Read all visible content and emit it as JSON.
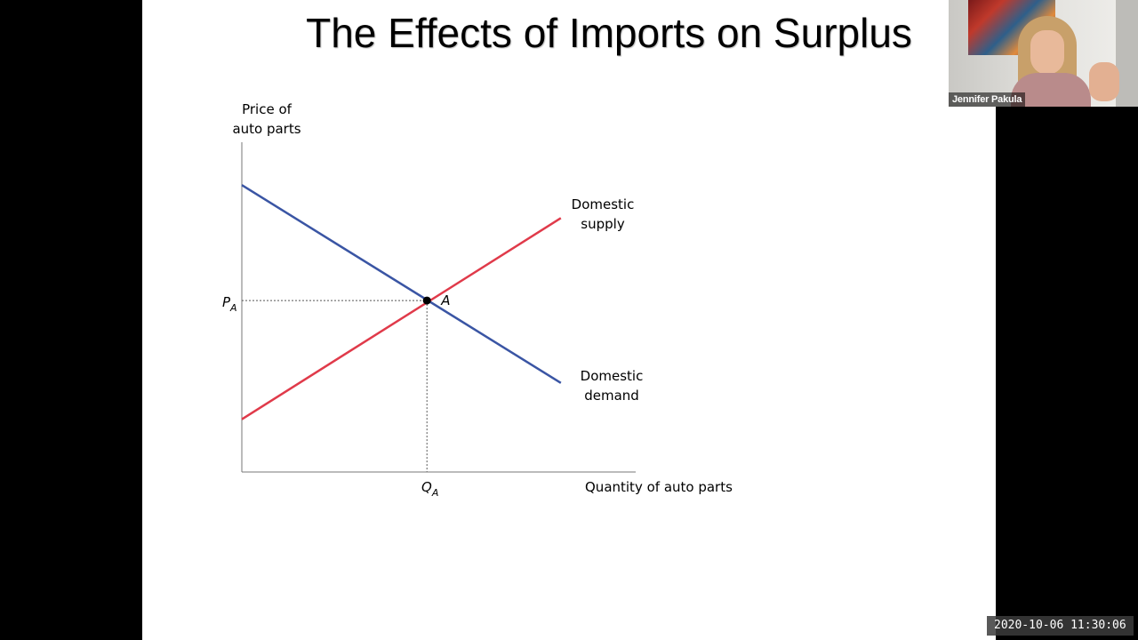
{
  "slide": {
    "title": "The Effects of Imports on Surplus"
  },
  "chart_data": {
    "type": "line",
    "title": "",
    "ylabel_line1": "Price of",
    "ylabel_line2": "auto parts",
    "xlabel": "Quantity of auto parts",
    "series": [
      {
        "name_line1": "Domestic",
        "name_line2": "supply",
        "color": "#e03a4a",
        "points": [
          [
            0,
            0.16
          ],
          [
            0.81,
            0.77
          ]
        ]
      },
      {
        "name_line1": "Domestic",
        "name_line2": "demand",
        "color": "#3a55a4",
        "points": [
          [
            0,
            0.87
          ],
          [
            0.81,
            0.27
          ]
        ]
      }
    ],
    "equilibrium": {
      "label": "A",
      "x": 0.47,
      "y": 0.52
    },
    "price_label": "P",
    "price_subscript": "A",
    "quantity_label": "Q",
    "quantity_subscript": "A",
    "xlim": [
      0,
      1
    ],
    "ylim": [
      0,
      1
    ]
  },
  "webcam": {
    "name": "Jennifer Pakula"
  },
  "recording": {
    "timestamp": "2020-10-06 11:30:06"
  }
}
